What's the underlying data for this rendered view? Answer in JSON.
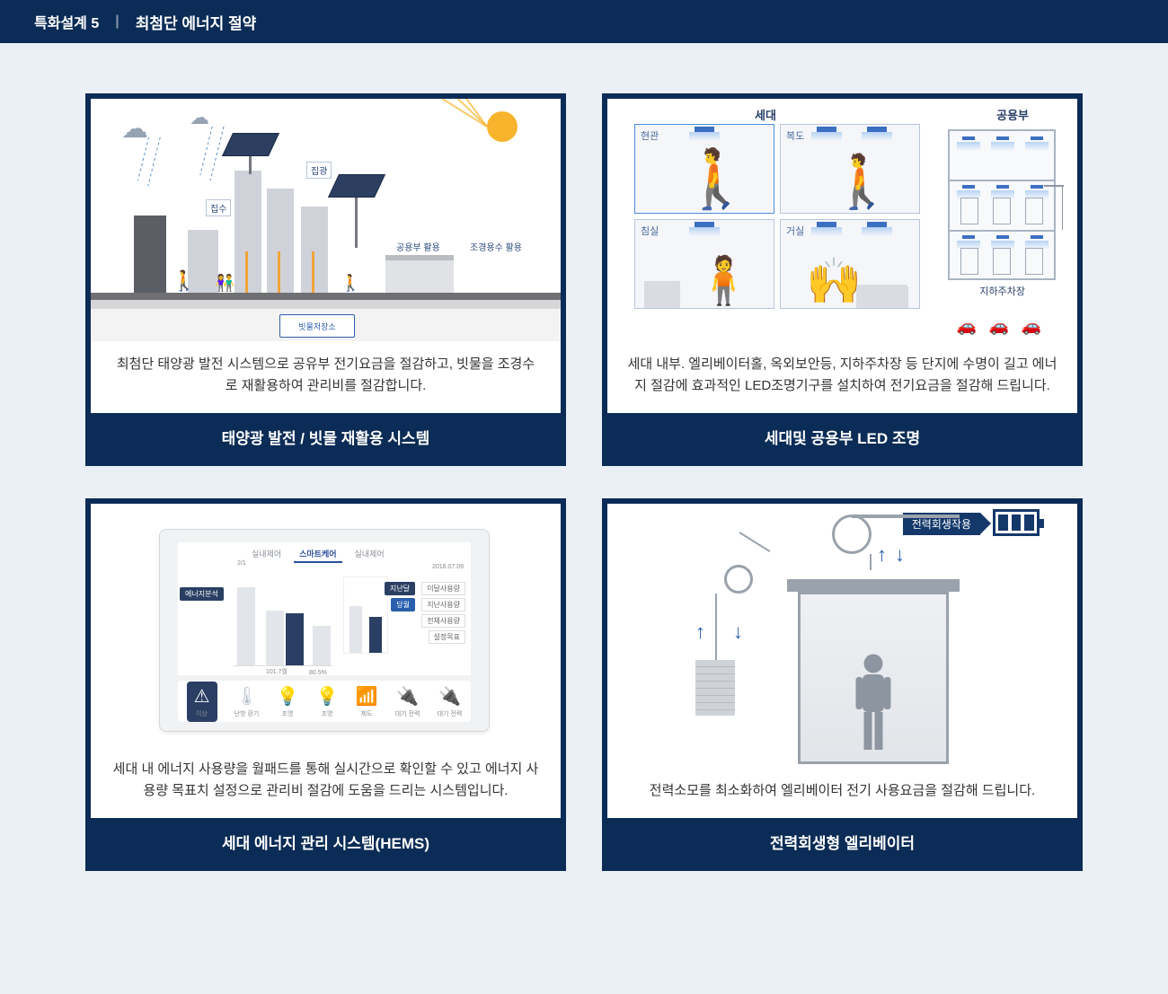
{
  "colors": {
    "navy": "#0b2c56",
    "page_bg": "#eaf0f6",
    "card_bg": "#ffffff",
    "led_blue": "#3b6fc2",
    "accent_blue": "#2a5fae",
    "orange_pipe": "#f0a33a",
    "sun": "#f7b42c",
    "grey_silhouette": "#c6ccd4",
    "steel": "#9aa2ac"
  },
  "header": {
    "category": "특화설계 5",
    "divider": "|",
    "title": "최첨단 에너지 절약"
  },
  "cards": [
    {
      "id": "solar",
      "title": "태양광 발전 / 빗물 재활용 시스템",
      "desc": "최첨단 태양광 발전 시스템으로 공유부 전기요금을 절감하고, 빗물을 조경수로 재활용하여 관리비를 절감합니다.",
      "labels": {
        "concentration": "집광",
        "collection": "집수",
        "common_use": "공용부 활용",
        "landscape_use": "조경용수 활용",
        "tank": "빗물저장소"
      }
    },
    {
      "id": "led",
      "title": "세대및 공용부 LED 조명",
      "desc": "세대 내부.  엘리베이터홀, 옥외보안등, 지하주차장 등 단지에 수명이 길고 에너지 절감에 효과적인 LED조명기구를 설치하여 전기요금을 절감해 드립니다.",
      "sections": {
        "unit": "세대",
        "common": "공용부"
      },
      "rooms": {
        "entrance": "현관",
        "hallway": "복도",
        "bedroom": "침실",
        "living": "거실",
        "parking": "지하주차장"
      }
    },
    {
      "id": "hems",
      "title": "세대 에너지 관리 시스템(HEMS)",
      "desc": "세대 내 에너지 사용량을 월패드를 통해 실시간으로 확인할 수 있고 에너지 사용량 목표치 설정으로 관리비 절감에 도움을 드리는 시스템입니다.",
      "tabs": [
        "실내제어",
        "스마트케어",
        "실내제어"
      ],
      "active_tab_index": 1,
      "side_badge": "에너지분석",
      "date": "2016.07.09",
      "bar_labels": [
        "2/1",
        "",
        "101.7월",
        "80.5%"
      ],
      "bar_heights_pct": [
        78,
        55,
        52,
        40,
        62,
        48
      ],
      "buttons": {
        "year": "지난달",
        "month": "당월"
      },
      "list_items": [
        "이달사용량",
        "지난사용량",
        "전체사용량",
        "설정목표"
      ],
      "icons": [
        {
          "glyph": "⚠",
          "label": "이상",
          "active": true
        },
        {
          "glyph": "🌡",
          "label": "난방 환기",
          "active": false
        },
        {
          "glyph": "💡",
          "label": "조명",
          "active": false
        },
        {
          "glyph": "💡",
          "label": "조명",
          "active": false
        },
        {
          "glyph": "📶",
          "label": "제도",
          "active": false
        },
        {
          "glyph": "🔌",
          "label": "대기 전력",
          "active": false
        },
        {
          "glyph": "🔌",
          "label": "대기 전력",
          "active": false
        }
      ]
    },
    {
      "id": "elevator",
      "title": "전력회생형 엘리베이터",
      "desc": "전력소모를 최소화하여 엘리베이터 전기 사용요금을 절감해 드립니다.",
      "regen_label": "전력회생작용",
      "battery_bars": 3
    }
  ]
}
